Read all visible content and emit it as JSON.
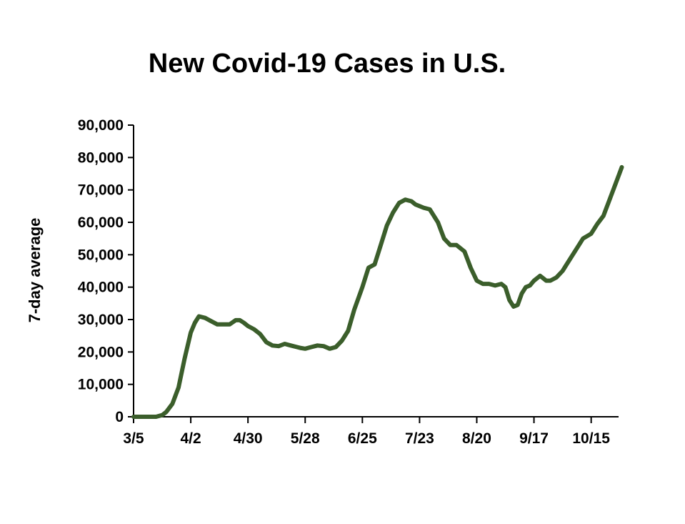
{
  "chart_data": {
    "type": "line",
    "title": "New Covid-19 Cases in U.S.",
    "xlabel": "",
    "ylabel": "7-day average",
    "ylim": [
      0,
      90000
    ],
    "x_start_label": "3/5",
    "x_tick_labels": [
      "3/5",
      "4/2",
      "4/30",
      "5/28",
      "6/25",
      "7/23",
      "8/20",
      "9/17",
      "10/15"
    ],
    "y_tick_labels": [
      "0",
      "10,000",
      "20,000",
      "30,000",
      "40,000",
      "50,000",
      "60,000",
      "70,000",
      "80,000",
      "90,000"
    ],
    "grid": false,
    "legend": "none",
    "series_color": "#3B5E2B",
    "series": [
      {
        "x": [
          "3/5",
          "3/12",
          "3/16",
          "3/19",
          "3/21",
          "3/24",
          "3/27",
          "3/30",
          "4/2",
          "4/4",
          "4/6",
          "4/9",
          "4/12",
          "4/15",
          "4/18",
          "4/21",
          "4/24",
          "4/26",
          "4/28",
          "4/30",
          "5/3",
          "5/6",
          "5/9",
          "5/12",
          "5/15",
          "5/18",
          "5/21",
          "5/24",
          "5/26",
          "5/28",
          "5/31",
          "6/3",
          "6/6",
          "6/9",
          "6/12",
          "6/15",
          "6/18",
          "6/21",
          "6/25",
          "6/28",
          "7/1",
          "7/4",
          "7/7",
          "7/10",
          "7/13",
          "7/16",
          "7/19",
          "7/21",
          "7/23",
          "7/25",
          "7/28",
          "8/1",
          "8/4",
          "8/7",
          "8/10",
          "8/14",
          "8/17",
          "8/20",
          "8/23",
          "8/26",
          "8/29",
          "9/1",
          "9/3",
          "9/5",
          "9/7",
          "9/9",
          "9/11",
          "9/13",
          "9/15",
          "9/17",
          "9/20",
          "9/23",
          "9/25",
          "9/28",
          "10/1",
          "10/3",
          "10/5",
          "10/8",
          "10/11",
          "10/15",
          "10/18",
          "10/21",
          "10/24",
          "10/27",
          "10/30"
        ],
        "y": [
          0,
          0,
          0,
          500,
          1500,
          4000,
          9000,
          18000,
          26000,
          29000,
          31000,
          30500,
          29500,
          28500,
          28500,
          28500,
          29800,
          29800,
          29000,
          28000,
          27000,
          25500,
          23000,
          22000,
          21800,
          22500,
          22000,
          21500,
          21200,
          21000,
          21500,
          22000,
          21800,
          21000,
          21500,
          23500,
          26500,
          33000,
          40000,
          46000,
          47000,
          53000,
          59000,
          63000,
          66000,
          67000,
          66500,
          65500,
          65000,
          64500,
          64000,
          60000,
          55000,
          53000,
          53000,
          51000,
          46000,
          42000,
          41000,
          41000,
          40500,
          41000,
          40000,
          36000,
          34000,
          34500,
          38000,
          40000,
          40500,
          42000,
          43500,
          42000,
          42000,
          43000,
          45000,
          47000,
          49000,
          52000,
          55000,
          56500,
          59500,
          62000,
          67000,
          72000,
          77000
        ]
      }
    ]
  }
}
